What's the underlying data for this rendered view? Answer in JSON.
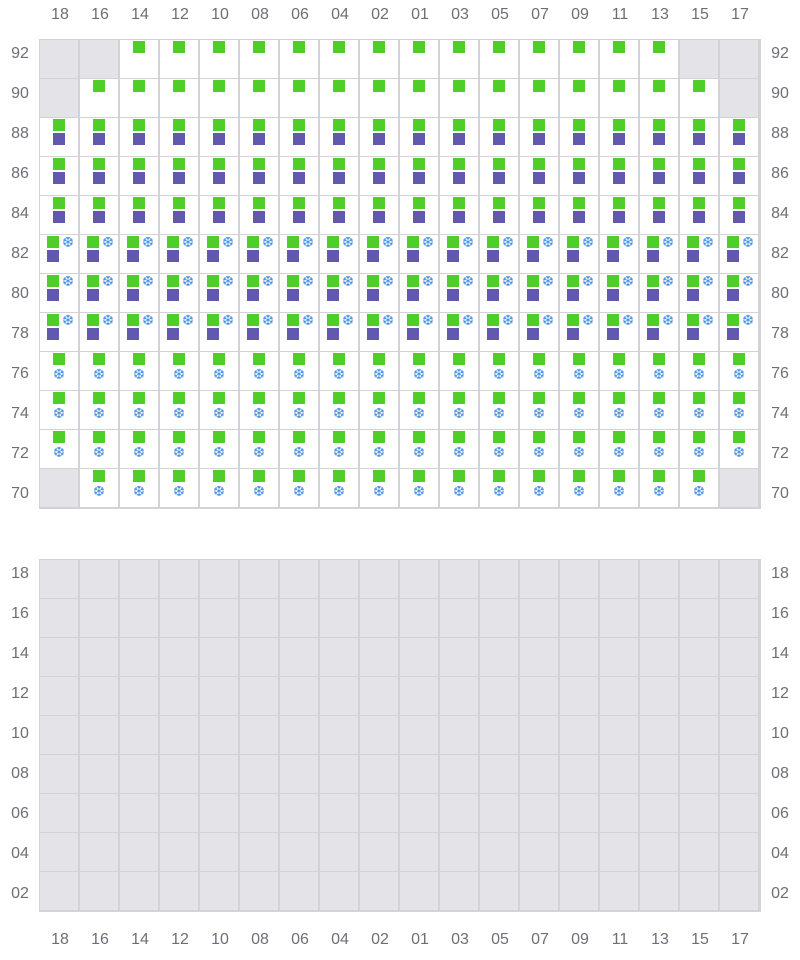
{
  "columns": [
    "18",
    "16",
    "14",
    "12",
    "10",
    "08",
    "06",
    "04",
    "02",
    "01",
    "03",
    "05",
    "07",
    "09",
    "11",
    "13",
    "15",
    "17"
  ],
  "colors": {
    "cargo": "#4fce2a",
    "second": "#6159ad",
    "reefer": "#4a93e0",
    "unavailable": "#e4e4e8"
  },
  "icons": {
    "reefer": "snowflake-icon"
  },
  "deck": {
    "rows": [
      {
        "tier": "92",
        "cells": [
          "x",
          "x",
          "g",
          "g",
          "g",
          "g",
          "g",
          "g",
          "g",
          "g",
          "g",
          "g",
          "g",
          "g",
          "g",
          "g",
          "x",
          "x"
        ]
      },
      {
        "tier": "90",
        "cells": [
          "x",
          "g",
          "g",
          "g",
          "g",
          "g",
          "g",
          "g",
          "g",
          "g",
          "g",
          "g",
          "g",
          "g",
          "g",
          "g",
          "g",
          "x"
        ]
      },
      {
        "tier": "88",
        "cells": [
          "gp",
          "gp",
          "gp",
          "gp",
          "gp",
          "gp",
          "gp",
          "gp",
          "gp",
          "gp",
          "gp",
          "gp",
          "gp",
          "gp",
          "gp",
          "gp",
          "gp",
          "gp"
        ]
      },
      {
        "tier": "86",
        "cells": [
          "gp",
          "gp",
          "gp",
          "gp",
          "gp",
          "gp",
          "gp",
          "gp",
          "gp",
          "gp",
          "gp",
          "gp",
          "gp",
          "gp",
          "gp",
          "gp",
          "gp",
          "gp"
        ]
      },
      {
        "tier": "84",
        "cells": [
          "gp",
          "gp",
          "gp",
          "gp",
          "gp",
          "gp",
          "gp",
          "gp",
          "gp",
          "gp",
          "gp",
          "gp",
          "gp",
          "gp",
          "gp",
          "gp",
          "gp",
          "gp"
        ]
      },
      {
        "tier": "82",
        "cells": [
          "gps",
          "gps",
          "gps",
          "gps",
          "gps",
          "gps",
          "gps",
          "gps",
          "gps",
          "gps",
          "gps",
          "gps",
          "gps",
          "gps",
          "gps",
          "gps",
          "gps",
          "gps"
        ]
      },
      {
        "tier": "80",
        "cells": [
          "gps",
          "gps",
          "gps",
          "gps",
          "gps",
          "gps",
          "gps",
          "gps",
          "gps",
          "gps",
          "gps",
          "gps",
          "gps",
          "gps",
          "gps",
          "gps",
          "gps",
          "gps"
        ]
      },
      {
        "tier": "78",
        "cells": [
          "gps",
          "gps",
          "gps",
          "gps",
          "gps",
          "gps",
          "gps",
          "gps",
          "gps",
          "gps",
          "gps",
          "gps",
          "gps",
          "gps",
          "gps",
          "gps",
          "gps",
          "gps"
        ]
      },
      {
        "tier": "76",
        "cells": [
          "gs",
          "gs",
          "gs",
          "gs",
          "gs",
          "gs",
          "gs",
          "gs",
          "gs",
          "gs",
          "gs",
          "gs",
          "gs",
          "gs",
          "gs",
          "gs",
          "gs",
          "gs"
        ]
      },
      {
        "tier": "74",
        "cells": [
          "gs",
          "gs",
          "gs",
          "gs",
          "gs",
          "gs",
          "gs",
          "gs",
          "gs",
          "gs",
          "gs",
          "gs",
          "gs",
          "gs",
          "gs",
          "gs",
          "gs",
          "gs"
        ]
      },
      {
        "tier": "72",
        "cells": [
          "gs",
          "gs",
          "gs",
          "gs",
          "gs",
          "gs",
          "gs",
          "gs",
          "gs",
          "gs",
          "gs",
          "gs",
          "gs",
          "gs",
          "gs",
          "gs",
          "gs",
          "gs"
        ]
      },
      {
        "tier": "70",
        "cells": [
          "x",
          "gs",
          "gs",
          "gs",
          "gs",
          "gs",
          "gs",
          "gs",
          "gs",
          "gs",
          "gs",
          "gs",
          "gs",
          "gs",
          "gs",
          "gs",
          "gs",
          "x"
        ]
      }
    ]
  },
  "hold": {
    "tiers": [
      "18",
      "16",
      "14",
      "12",
      "10",
      "08",
      "06",
      "04",
      "02"
    ],
    "cells": "x"
  }
}
